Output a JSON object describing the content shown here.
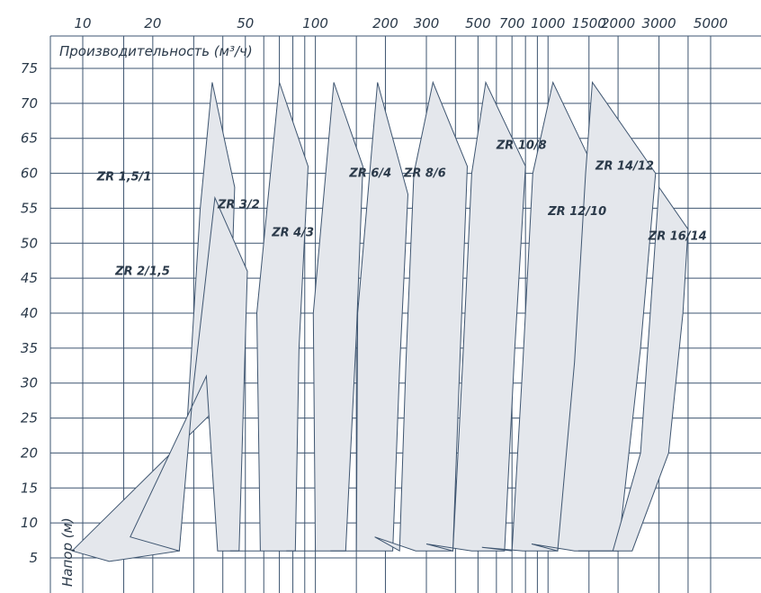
{
  "chart_data": {
    "type": "area",
    "title": "",
    "xlabel": "Производительность (м³/ч)",
    "ylabel": "Напор (м)",
    "x_scale": "log",
    "x_ticks": [
      {
        "value": 10,
        "label": "10"
      },
      {
        "value": 20,
        "label": "20"
      },
      {
        "value": 50,
        "label": "50"
      },
      {
        "value": 100,
        "label": "100"
      },
      {
        "value": 200,
        "label": "200"
      },
      {
        "value": 300,
        "label": "300"
      },
      {
        "value": 500,
        "label": "500"
      },
      {
        "value": 700,
        "label": "700"
      },
      {
        "value": 1000,
        "label": "1000"
      },
      {
        "value": 1500,
        "label": "1500"
      },
      {
        "value": 2000,
        "label": "2000"
      },
      {
        "value": 3000,
        "label": "3000"
      },
      {
        "value": 5000,
        "label": "5000"
      }
    ],
    "y_ticks": [
      5,
      10,
      15,
      20,
      25,
      30,
      35,
      40,
      45,
      50,
      55,
      60,
      65,
      70,
      75
    ],
    "ylim": [
      3,
      78
    ],
    "colors": {
      "fill": "#e4e7ec",
      "line": "#3e5570",
      "text": "#2b3a4a"
    },
    "series": [
      {
        "name": "ZR 1,5/1",
        "points": [
          [
            9,
            6
          ],
          [
            13,
            4.5
          ],
          [
            26,
            6
          ],
          [
            32,
            55
          ],
          [
            36,
            73
          ],
          [
            45,
            58
          ],
          [
            42,
            28
          ]
        ]
      },
      {
        "name": "ZR 2/1,5",
        "points": [
          [
            16,
            8
          ],
          [
            26,
            6
          ],
          [
            30,
            30
          ],
          [
            37,
            56.5
          ],
          [
            51,
            46
          ],
          [
            47,
            6
          ],
          [
            38,
            6
          ],
          [
            34,
            31
          ]
        ]
      },
      {
        "name": "ZR 3/2",
        "points": [
          [
            43,
            6
          ],
          [
            58,
            6
          ],
          [
            56,
            40
          ],
          [
            70,
            73
          ],
          [
            93,
            61
          ],
          [
            85,
            35
          ],
          [
            82,
            6
          ],
          [
            62,
            6
          ]
        ]
      },
      {
        "name": "ZR 4/3",
        "points": [
          [
            75,
            6
          ],
          [
            100,
            6
          ],
          [
            98,
            40
          ],
          [
            120,
            73
          ],
          [
            160,
            61
          ],
          [
            150,
            37
          ],
          [
            135,
            6
          ],
          [
            105,
            6
          ]
        ]
      },
      {
        "name": "ZR 6/4",
        "points": [
          [
            116,
            6
          ],
          [
            150,
            6
          ],
          [
            152,
            40
          ],
          [
            185,
            73
          ],
          [
            250,
            57
          ],
          [
            230,
            32
          ],
          [
            215,
            6
          ],
          [
            160,
            6
          ]
        ]
      },
      {
        "name": "ZR 8/6",
        "points": [
          [
            180,
            8
          ],
          [
            230,
            6
          ],
          [
            245,
            33
          ],
          [
            265,
            60
          ],
          [
            320,
            73
          ],
          [
            450,
            61
          ],
          [
            420,
            35
          ],
          [
            390,
            6
          ],
          [
            270,
            6
          ]
        ]
      },
      {
        "name": "ZR 10/8",
        "points": [
          [
            300,
            7
          ],
          [
            390,
            6
          ],
          [
            430,
            33
          ],
          [
            470,
            60
          ],
          [
            540,
            73
          ],
          [
            800,
            61
          ],
          [
            720,
            35
          ],
          [
            650,
            6
          ],
          [
            470,
            6
          ]
        ]
      },
      {
        "name": "ZR 12/10",
        "points": [
          [
            520,
            6.5
          ],
          [
            700,
            6
          ],
          [
            780,
            33
          ],
          [
            860,
            60
          ],
          [
            1050,
            73
          ],
          [
            1900,
            55
          ],
          [
            1500,
            30
          ],
          [
            1100,
            6
          ],
          [
            780,
            6
          ]
        ]
      },
      {
        "name": "ZR 14/12",
        "points": [
          [
            850,
            7
          ],
          [
            1100,
            6
          ],
          [
            1300,
            33
          ],
          [
            1450,
            60
          ],
          [
            1550,
            73
          ],
          [
            2900,
            60
          ],
          [
            2500,
            35
          ],
          [
            2000,
            6
          ],
          [
            1300,
            6
          ]
        ]
      },
      {
        "name": "ZR 16/14",
        "points": [
          [
            1350,
            6
          ],
          [
            1900,
            6
          ],
          [
            2500,
            20
          ],
          [
            3000,
            58
          ],
          [
            4000,
            52
          ],
          [
            3800,
            40
          ],
          [
            3300,
            20
          ],
          [
            2300,
            6
          ]
        ]
      }
    ],
    "labels": [
      {
        "text": "ZR 1,5/1",
        "x": 11.5,
        "y": 59
      },
      {
        "text": "ZR 2/1,5",
        "x": 13.8,
        "y": 45.5
      },
      {
        "text": "ZR 3/2",
        "x": 38,
        "y": 55
      },
      {
        "text": "ZR 4/3",
        "x": 65,
        "y": 51
      },
      {
        "text": "ZR 6/4",
        "x": 140,
        "y": 59.5
      },
      {
        "text": "ZR 8/6",
        "x": 240,
        "y": 59.5
      },
      {
        "text": "ZR 10/8",
        "x": 600,
        "y": 63.5
      },
      {
        "text": "ZR 12/10",
        "x": 1000,
        "y": 54
      },
      {
        "text": "ZR 14/12",
        "x": 1600,
        "y": 60.5
      },
      {
        "text": "ZR 16/14",
        "x": 2700,
        "y": 50.5
      }
    ],
    "grid": true,
    "legend": "none"
  }
}
